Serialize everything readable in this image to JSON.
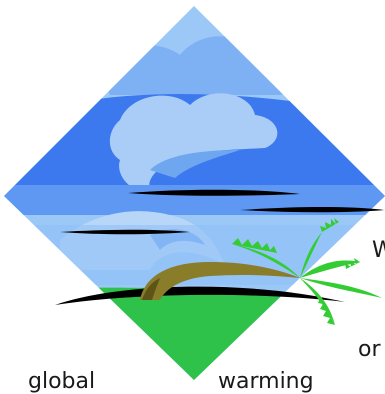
{
  "words": [
    "W",
    "or",
    "global",
    "warming"
  ],
  "colors": {
    "sky_light": "#9cc8f8",
    "sky_mid": "#6fa6f0",
    "sky_deep": "#2f6ff0",
    "cloud": "#a9cdf6",
    "ground": "#2ec24a",
    "tree_trunk": "#8a7d2a",
    "palm_leaf": "#33cc33",
    "ink": "#000000"
  }
}
